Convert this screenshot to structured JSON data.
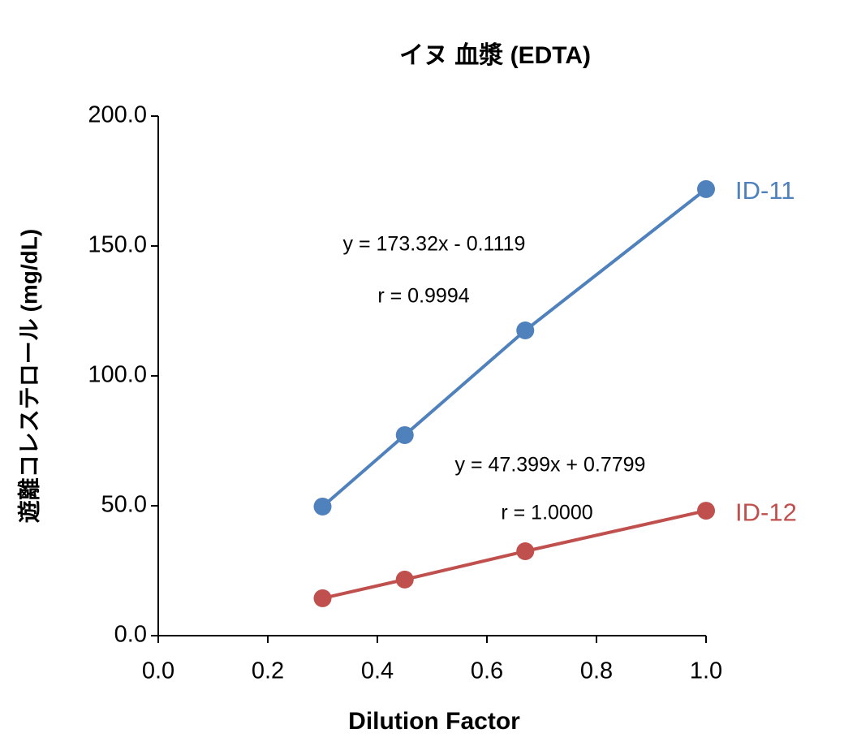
{
  "chart_data": {
    "type": "line",
    "title": "イヌ 血漿 (EDTA)",
    "x_label": "Dilution Factor",
    "y_label": "遊離コレステロール (mg/dL)",
    "xlim": [
      0,
      1
    ],
    "ylim": [
      0,
      200
    ],
    "xticks": [
      {
        "value": 0,
        "label": "0.0"
      },
      0.2,
      0.4,
      0.6,
      0.8,
      {
        "value": 1,
        "label": "1.0"
      }
    ],
    "yticks": [
      {
        "value": 0,
        "label": "0.0"
      },
      {
        "value": 50,
        "label": "50.0"
      },
      {
        "value": 100,
        "label": "100.0"
      },
      {
        "value": 150,
        "label": "150.0"
      },
      {
        "value": 200,
        "label": "200.0"
      }
    ],
    "series": [
      {
        "name": "ID-11",
        "color": "#4f81bd",
        "x": [
          0.3,
          0.45,
          0.67,
          1.0
        ],
        "values": [
          49.7,
          77.2,
          117.5,
          171.9
        ]
      },
      {
        "name": "ID-12",
        "color": "#c0504d",
        "x": [
          0.3,
          0.45,
          0.67,
          1.0
        ],
        "values": [
          14.4,
          21.6,
          32.5,
          48.1
        ]
      }
    ],
    "annotations": [
      "y = 173.32x - 0.1119",
      "r = 0.9994",
      "y = 47.399x + 0.7799",
      "r = 1.0000"
    ]
  }
}
